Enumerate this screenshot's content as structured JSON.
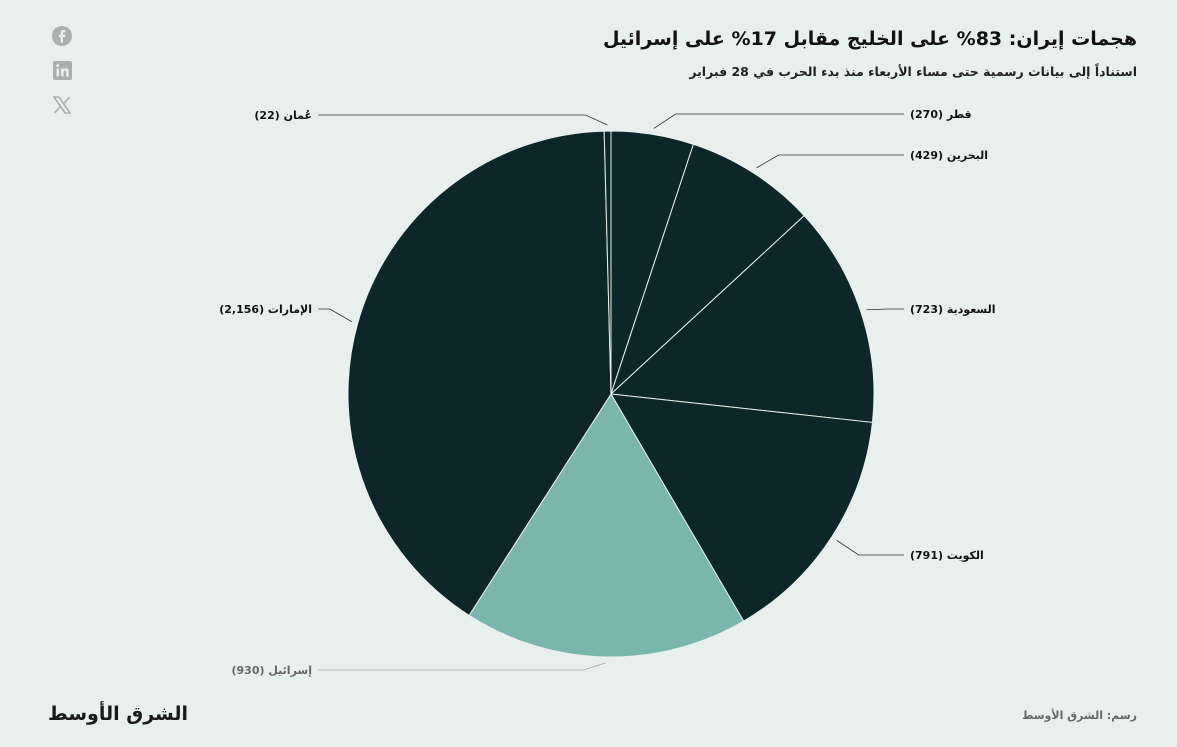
{
  "header": {
    "title": "هجمات إيران: 83% على الخليج مقابل 17% على إسرائيل",
    "subtitle": "استناداً إلى بيانات رسمية حتى مساء الأربعاء منذ بدء الحرب في 28 فبراير"
  },
  "social": [
    "facebook-icon",
    "linkedin-icon",
    "x-icon"
  ],
  "footer": {
    "logo": "الشرق الأوسط",
    "credit": "رسم: الشرق الأوسط"
  },
  "colors": {
    "background": "#e8f0ed",
    "gulf": "#0d2629",
    "israel": "#7ab5ae",
    "label_gulf": "#111111",
    "label_israel": "#666666"
  },
  "chart_data": {
    "type": "pie",
    "start": "top",
    "direction": "clockwise",
    "slices": [
      {
        "name": "قطر",
        "value": 270,
        "label": "قطر (270)",
        "color": "#0d2629"
      },
      {
        "name": "البحرين",
        "value": 429,
        "label": "البحرين (429)",
        "color": "#0d2629"
      },
      {
        "name": "السعودية",
        "value": 723,
        "label": "السعودية (723)",
        "color": "#0d2629"
      },
      {
        "name": "الكويت",
        "value": 791,
        "label": "الكويت (791)",
        "color": "#0d2629"
      },
      {
        "name": "إسرائيل",
        "value": 930,
        "label": "إسرائيل (930)",
        "color": "#7ab5ae"
      },
      {
        "name": "الإمارات",
        "value": 2156,
        "label": "الإمارات (2,156)",
        "color": "#0d2629"
      },
      {
        "name": "عُمان",
        "value": 22,
        "label": "عُمان (22)",
        "color": "#0d2629"
      }
    ]
  }
}
